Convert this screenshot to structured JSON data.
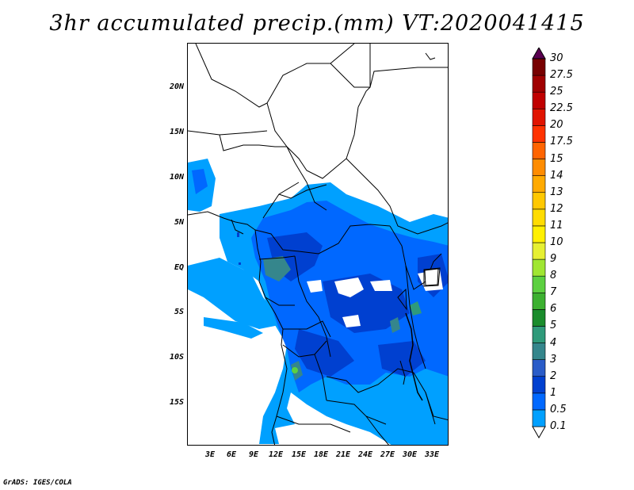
{
  "title": "3hr accumulated precip.(mm) VT:2020041415",
  "credit": "GrADS: IGES/COLA",
  "map": {
    "lat_labels": [
      "20N",
      "15N",
      "10N",
      "5N",
      "EQ",
      "5S",
      "10S",
      "15S"
    ],
    "lon_labels": [
      "3E",
      "6E",
      "9E",
      "12E",
      "15E",
      "18E",
      "21E",
      "24E",
      "27E",
      "30E",
      "33E"
    ]
  },
  "colorbar": {
    "levels": [
      "0.1",
      "0.5",
      "1",
      "2",
      "3",
      "4",
      "5",
      "6",
      "7",
      "8",
      "9",
      "10",
      "11",
      "12",
      "13",
      "14",
      "15",
      "17.5",
      "20",
      "22.5",
      "25",
      "27.5",
      "30"
    ],
    "colors": [
      "#ffffff",
      "#00a0ff",
      "#0068ff",
      "#0040d0",
      "#2a5cc8",
      "#35868c",
      "#2f9a7a",
      "#1a8c2c",
      "#3cb030",
      "#5cd040",
      "#a0e632",
      "#e6f032",
      "#fff000",
      "#ffdc00",
      "#ffc800",
      "#ffaa00",
      "#ff8c00",
      "#ff6400",
      "#ff3200",
      "#e11400",
      "#c00000",
      "#a00000",
      "#780000",
      "#5a0050"
    ]
  }
}
